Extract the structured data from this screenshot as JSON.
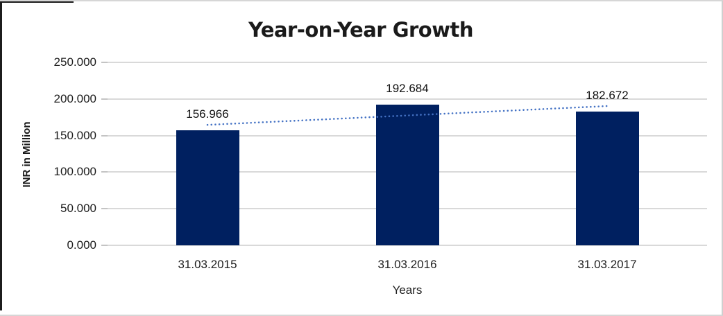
{
  "chart_data": {
    "type": "bar",
    "title": "Year-on-Year Growth",
    "categories": [
      "31.03.2015",
      "31.03.2016",
      "31.03.2017"
    ],
    "values": [
      156.966,
      192.684,
      182.672
    ],
    "data_labels": [
      "156.966",
      "192.684",
      "182.672"
    ],
    "xlabel": "Years",
    "ylabel": "INR in Million",
    "ylim": [
      0,
      250
    ],
    "ytick_step": 50,
    "ytick_labels": [
      "0.000",
      "50.000",
      "100.000",
      "150.000",
      "200.000",
      "250.000"
    ],
    "grid": true,
    "legend": "none",
    "bar_color": "#002060",
    "gridline_color": "#d9d9d9",
    "trendline": {
      "kind": "linear",
      "style": "dotted",
      "color": "#4472C4"
    }
  }
}
